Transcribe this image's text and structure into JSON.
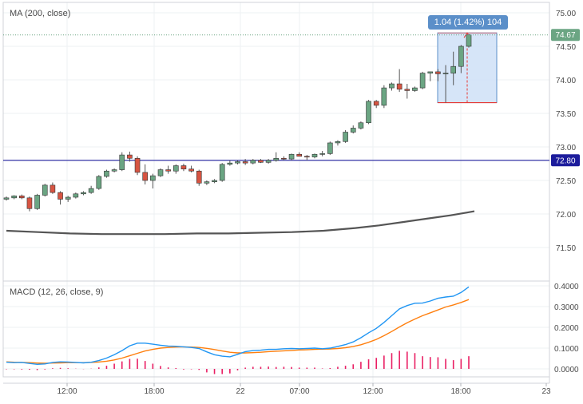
{
  "main_pane": {
    "indicator_label": "MA (200, close)",
    "price_ticks": [
      "75.00",
      "74.50",
      "74.00",
      "73.50",
      "73.00",
      "72.50",
      "72.00",
      "71.50"
    ],
    "current_price_label": "74.67",
    "horizontal_line_label": "72.80",
    "measure_label": "1.04 (1.42%) 104"
  },
  "macd_pane": {
    "indicator_label": "MACD (12, 26, close, 9)",
    "ticks": [
      "0.4000",
      "0.3000",
      "0.2000",
      "0.1000",
      "0.0000"
    ]
  },
  "time_axis": {
    "ticks": [
      "12:00",
      "18:00",
      "22",
      "07:00",
      "12:00",
      "18:00",
      "23"
    ]
  },
  "colors": {
    "up_candle": "#6ba583",
    "down_candle": "#d75442",
    "ma_line": "#555555",
    "hline": "#1c1c9c",
    "macd_line": "#2196f3",
    "signal_line": "#ff7f0e",
    "histogram": "#e91e63",
    "measure_fill": "#cfe0f7",
    "price_badge": "#6ba583"
  },
  "chart_data": [
    {
      "type": "candlestick",
      "title": "MA (200, close)",
      "ylim": [
        71.1,
        75.2
      ],
      "ohlc": [
        [
          72.22,
          72.26,
          72.2,
          72.24
        ],
        [
          72.24,
          72.28,
          72.22,
          72.27
        ],
        [
          72.27,
          72.29,
          72.22,
          72.24
        ],
        [
          72.24,
          72.26,
          72.04,
          72.08
        ],
        [
          72.08,
          72.3,
          72.06,
          72.28
        ],
        [
          72.28,
          72.45,
          72.26,
          72.43
        ],
        [
          72.43,
          72.47,
          72.3,
          72.32
        ],
        [
          72.32,
          72.34,
          72.14,
          72.22
        ],
        [
          72.22,
          72.27,
          72.18,
          72.25
        ],
        [
          72.25,
          72.32,
          72.23,
          72.3
        ],
        [
          72.3,
          72.34,
          72.28,
          72.32
        ],
        [
          72.32,
          72.42,
          72.3,
          72.38
        ],
        [
          72.38,
          72.58,
          72.36,
          72.56
        ],
        [
          72.56,
          72.66,
          72.54,
          72.64
        ],
        [
          72.64,
          72.68,
          72.62,
          72.66
        ],
        [
          72.66,
          72.92,
          72.64,
          72.88
        ],
        [
          72.88,
          72.93,
          72.78,
          72.83
        ],
        [
          72.83,
          72.86,
          72.58,
          72.62
        ],
        [
          72.62,
          72.74,
          72.44,
          72.5
        ],
        [
          72.5,
          72.6,
          72.38,
          72.57
        ],
        [
          72.57,
          72.68,
          72.55,
          72.66
        ],
        [
          72.66,
          72.72,
          72.6,
          72.64
        ],
        [
          72.64,
          72.74,
          72.6,
          72.72
        ],
        [
          72.72,
          72.75,
          72.64,
          72.67
        ],
        [
          72.67,
          72.72,
          72.62,
          72.64
        ],
        [
          72.64,
          72.66,
          72.42,
          72.46
        ],
        [
          72.46,
          72.5,
          72.43,
          72.48
        ],
        [
          72.48,
          72.52,
          72.46,
          72.5
        ],
        [
          72.5,
          72.76,
          72.48,
          72.74
        ],
        [
          72.74,
          72.8,
          72.72,
          72.76
        ],
        [
          72.76,
          72.8,
          72.74,
          72.78
        ],
        [
          72.78,
          72.82,
          72.73,
          72.76
        ],
        [
          72.76,
          72.82,
          72.74,
          72.8
        ],
        [
          72.8,
          72.82,
          72.76,
          72.77
        ],
        [
          72.77,
          72.82,
          72.75,
          72.8
        ],
        [
          72.8,
          72.92,
          72.78,
          72.83
        ],
        [
          72.83,
          72.86,
          72.8,
          72.82
        ],
        [
          72.82,
          72.9,
          72.8,
          72.89
        ],
        [
          72.89,
          72.92,
          72.86,
          72.86
        ],
        [
          72.86,
          72.88,
          72.8,
          72.85
        ],
        [
          72.85,
          72.9,
          72.83,
          72.89
        ],
        [
          72.89,
          72.94,
          72.86,
          72.9
        ],
        [
          72.9,
          73.08,
          72.88,
          73.06
        ],
        [
          73.06,
          73.1,
          73.02,
          73.08
        ],
        [
          73.08,
          73.25,
          73.06,
          73.22
        ],
        [
          73.22,
          73.32,
          73.2,
          73.28
        ],
        [
          73.28,
          73.38,
          73.26,
          73.36
        ],
        [
          73.36,
          73.7,
          73.34,
          73.68
        ],
        [
          73.68,
          73.7,
          73.58,
          73.62
        ],
        [
          73.62,
          73.92,
          73.58,
          73.88
        ],
        [
          73.88,
          73.96,
          73.84,
          73.94
        ],
        [
          73.94,
          74.16,
          73.82,
          73.86
        ],
        [
          73.86,
          73.94,
          73.72,
          73.84
        ],
        [
          73.84,
          73.9,
          73.82,
          73.88
        ],
        [
          73.88,
          74.12,
          73.86,
          74.1
        ],
        [
          74.1,
          74.12,
          73.98,
          74.12
        ],
        [
          74.12,
          74.16,
          73.98,
          74.09
        ],
        [
          74.09,
          74.22,
          73.66,
          74.1
        ],
        [
          74.1,
          74.42,
          73.92,
          74.2
        ],
        [
          74.2,
          74.52,
          74.1,
          74.5
        ],
        [
          74.5,
          74.68,
          74.48,
          74.67
        ]
      ],
      "ma_200": [
        [
          0,
          71.75
        ],
        [
          0.08,
          71.73
        ],
        [
          0.16,
          71.71
        ],
        [
          0.24,
          71.7
        ],
        [
          0.32,
          71.7
        ],
        [
          0.4,
          71.7
        ],
        [
          0.48,
          71.71
        ],
        [
          0.56,
          71.71
        ],
        [
          0.64,
          71.72
        ],
        [
          0.72,
          71.73
        ],
        [
          0.8,
          71.75
        ],
        [
          0.88,
          71.79
        ],
        [
          0.94,
          71.83
        ],
        [
          1.0,
          71.88
        ],
        [
          1.06,
          71.93
        ],
        [
          1.12,
          71.98
        ],
        [
          1.16,
          72.02
        ],
        [
          1.18,
          72.04
        ]
      ],
      "horizontal_line": 72.8,
      "last_price": 74.67,
      "measurement": {
        "start_price": 73.66,
        "end_price": 74.7,
        "change": 1.04,
        "percent": 1.42,
        "bars": 104
      }
    },
    {
      "type": "line",
      "title": "MACD (12, 26, close, 9)",
      "ylim": [
        -0.04,
        0.42
      ],
      "macd_line": [
        0.032,
        0.03,
        0.031,
        0.026,
        0.022,
        0.024,
        0.031,
        0.034,
        0.033,
        0.031,
        0.029,
        0.032,
        0.04,
        0.052,
        0.068,
        0.088,
        0.111,
        0.124,
        0.124,
        0.119,
        0.114,
        0.11,
        0.109,
        0.106,
        0.103,
        0.098,
        0.082,
        0.068,
        0.061,
        0.058,
        0.07,
        0.083,
        0.088,
        0.09,
        0.094,
        0.094,
        0.097,
        0.098,
        0.097,
        0.098,
        0.1,
        0.097,
        0.1,
        0.108,
        0.117,
        0.13,
        0.15,
        0.174,
        0.195,
        0.224,
        0.256,
        0.289,
        0.305,
        0.316,
        0.317,
        0.327,
        0.34,
        0.346,
        0.35,
        0.368,
        0.395
      ],
      "signal_line": [
        0.034,
        0.032,
        0.031,
        0.03,
        0.028,
        0.027,
        0.028,
        0.029,
        0.03,
        0.03,
        0.03,
        0.031,
        0.033,
        0.037,
        0.043,
        0.052,
        0.063,
        0.075,
        0.086,
        0.094,
        0.1,
        0.103,
        0.105,
        0.106,
        0.105,
        0.103,
        0.099,
        0.093,
        0.086,
        0.08,
        0.077,
        0.077,
        0.078,
        0.08,
        0.083,
        0.085,
        0.087,
        0.089,
        0.091,
        0.092,
        0.094,
        0.095,
        0.096,
        0.098,
        0.102,
        0.108,
        0.116,
        0.128,
        0.142,
        0.16,
        0.18,
        0.202,
        0.222,
        0.24,
        0.256,
        0.27,
        0.284,
        0.298,
        0.308,
        0.32,
        0.334
      ],
      "histogram": [
        -0.002,
        -0.002,
        0.0,
        -0.004,
        -0.006,
        -0.003,
        0.003,
        0.005,
        0.003,
        0.001,
        -0.001,
        0.001,
        0.007,
        0.015,
        0.025,
        0.036,
        0.048,
        0.049,
        0.038,
        0.025,
        0.014,
        0.007,
        0.004,
        0.0,
        -0.002,
        -0.005,
        -0.017,
        -0.025,
        -0.025,
        -0.022,
        -0.007,
        0.006,
        0.01,
        0.01,
        0.011,
        0.009,
        0.01,
        0.009,
        0.006,
        0.006,
        0.006,
        0.002,
        0.004,
        0.01,
        0.015,
        0.022,
        0.034,
        0.046,
        0.053,
        0.064,
        0.076,
        0.087,
        0.083,
        0.076,
        0.061,
        0.057,
        0.056,
        0.048,
        0.042,
        0.048,
        0.061
      ]
    }
  ]
}
